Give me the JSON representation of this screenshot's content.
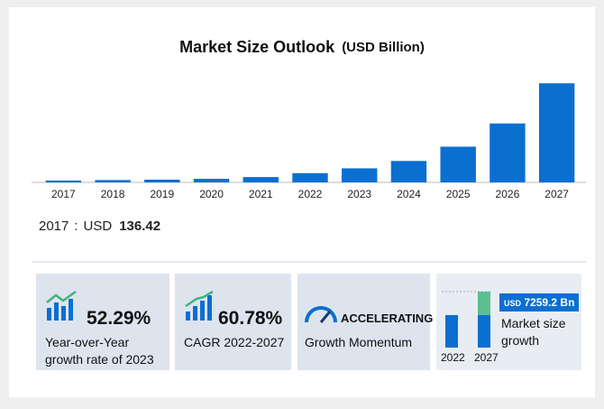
{
  "chart_data": {
    "type": "bar",
    "title": "Market Size Outlook",
    "subtitle": "(USD Billion)",
    "categories": [
      "2017",
      "2018",
      "2019",
      "2020",
      "2021",
      "2022",
      "2023",
      "2024",
      "2025",
      "2026",
      "2027"
    ],
    "values": [
      136.42,
      170,
      200,
      260,
      390,
      676,
      1029,
      1570,
      2616,
      4316,
      7259.2
    ],
    "color": "#0b6fd0",
    "ylim": [
      0,
      8400
    ],
    "currency": "USD"
  },
  "cards": [
    {
      "value": "52.29%",
      "caption": "Year-over-Year growth rate of 2023"
    },
    {
      "value": "60.78%",
      "caption": "CAGR 2022-2027"
    },
    {
      "value": "ACCELERATING",
      "caption": "Growth Momentum"
    },
    {
      "currency": "USD",
      "value": "7259.2 Bn",
      "caption": "Market size growth",
      "years": [
        "2022",
        "2027"
      ]
    }
  ]
}
